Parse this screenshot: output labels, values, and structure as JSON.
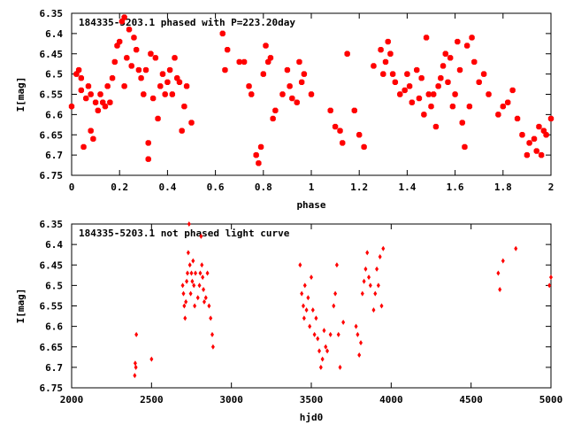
{
  "chart_data": [
    {
      "type": "scatter",
      "title": "184335-5203.1 phased with P=223.20day",
      "xlabel": "phase",
      "ylabel": "I[mag]",
      "xlim": [
        0,
        2
      ],
      "ylim": [
        6.35,
        6.75
      ],
      "y_inverted": true,
      "xticks": [
        0,
        0.2,
        0.4,
        0.6,
        0.8,
        1,
        1.2,
        1.4,
        1.6,
        1.8,
        2
      ],
      "xtick_labels": [
        "0",
        "0.2",
        "0.4",
        "0.6",
        "0.8",
        "1",
        "1.2",
        "1.4",
        "1.6",
        "1.8",
        "2"
      ],
      "yticks": [
        6.35,
        6.4,
        6.45,
        6.5,
        6.55,
        6.6,
        6.65,
        6.7,
        6.75
      ],
      "ytick_labels": [
        "6.35",
        "6.4",
        "6.45",
        "6.5",
        "6.55",
        "6.6",
        "6.65",
        "6.7",
        "6.75"
      ],
      "marker_color": "#ff0000",
      "marker": "filled-circle",
      "x": [
        0.0,
        0.02,
        0.03,
        0.04,
        0.04,
        0.05,
        0.06,
        0.07,
        0.08,
        0.08,
        0.09,
        0.1,
        0.11,
        0.12,
        0.13,
        0.14,
        0.15,
        0.16,
        0.17,
        0.18,
        0.19,
        0.2,
        0.21,
        0.22,
        0.22,
        0.23,
        0.24,
        0.25,
        0.26,
        0.27,
        0.28,
        0.29,
        0.3,
        0.31,
        0.32,
        0.32,
        0.33,
        0.34,
        0.35,
        0.36,
        0.37,
        0.38,
        0.39,
        0.4,
        0.41,
        0.42,
        0.43,
        0.44,
        0.45,
        0.46,
        0.47,
        0.48,
        0.5,
        0.63,
        0.64,
        0.65,
        0.7,
        0.72,
        0.74,
        0.75,
        0.77,
        0.78,
        0.79,
        0.8,
        0.81,
        0.82,
        0.83,
        0.84,
        0.85,
        0.88,
        0.9,
        0.91,
        0.92,
        0.94,
        0.95,
        0.96,
        0.97,
        1.0,
        1.08,
        1.1,
        1.12,
        1.13,
        1.15,
        1.18,
        1.2,
        1.22,
        1.26,
        1.29,
        1.3,
        1.31,
        1.32,
        1.33,
        1.34,
        1.35,
        1.37,
        1.39,
        1.4,
        1.41,
        1.42,
        1.44,
        1.45,
        1.46,
        1.47,
        1.48,
        1.49,
        1.5,
        1.51,
        1.52,
        1.53,
        1.54,
        1.55,
        1.56,
        1.57,
        1.58,
        1.59,
        1.6,
        1.61,
        1.62,
        1.63,
        1.64,
        1.65,
        1.66,
        1.67,
        1.68,
        1.7,
        1.72,
        1.74,
        1.78,
        1.8,
        1.82,
        1.84,
        1.86,
        1.88,
        1.9,
        1.91,
        1.93,
        1.94,
        1.95,
        1.96,
        1.97,
        1.98,
        2.0
      ],
      "y": [
        6.58,
        6.5,
        6.49,
        6.54,
        6.51,
        6.68,
        6.56,
        6.53,
        6.64,
        6.55,
        6.66,
        6.57,
        6.59,
        6.55,
        6.57,
        6.58,
        6.53,
        6.57,
        6.51,
        6.47,
        6.43,
        6.42,
        6.37,
        6.36,
        6.53,
        6.46,
        6.39,
        6.48,
        6.41,
        6.44,
        6.49,
        6.51,
        6.55,
        6.49,
        6.67,
        6.71,
        6.45,
        6.56,
        6.46,
        6.61,
        6.53,
        6.5,
        6.55,
        6.52,
        6.49,
        6.55,
        6.46,
        6.51,
        6.52,
        6.64,
        6.58,
        6.53,
        6.62,
        6.4,
        6.49,
        6.44,
        6.47,
        6.47,
        6.53,
        6.55,
        6.7,
        6.72,
        6.68,
        6.5,
        6.43,
        6.47,
        6.46,
        6.61,
        6.59,
        6.55,
        6.49,
        6.53,
        6.56,
        6.57,
        6.47,
        6.52,
        6.5,
        6.55,
        6.59,
        6.63,
        6.64,
        6.67,
        6.45,
        6.59,
        6.65,
        6.68,
        6.48,
        6.44,
        6.5,
        6.47,
        6.42,
        6.45,
        6.5,
        6.52,
        6.55,
        6.54,
        6.5,
        6.53,
        6.57,
        6.49,
        6.56,
        6.51,
        6.6,
        6.41,
        6.55,
        6.58,
        6.55,
        6.63,
        6.53,
        6.51,
        6.48,
        6.45,
        6.52,
        6.46,
        6.58,
        6.55,
        6.42,
        6.49,
        6.62,
        6.68,
        6.43,
        6.58,
        6.41,
        6.47,
        6.52,
        6.5,
        6.55,
        6.6,
        6.58,
        6.57,
        6.54,
        6.61,
        6.65,
        6.7,
        6.67,
        6.66,
        6.69,
        6.63,
        6.7,
        6.64,
        6.65,
        6.61
      ]
    },
    {
      "type": "scatter",
      "title": "184335-5203.1 not phased light curve",
      "xlabel": "hjd0",
      "ylabel": "I[mag]",
      "xlim": [
        2000,
        5000
      ],
      "ylim": [
        6.35,
        6.75
      ],
      "y_inverted": true,
      "xticks": [
        2000,
        2500,
        3000,
        3500,
        4000,
        4500,
        5000
      ],
      "xtick_labels": [
        "2000",
        "2500",
        "3000",
        "3500",
        "4000",
        "4500",
        "5000"
      ],
      "yticks": [
        6.35,
        6.4,
        6.45,
        6.5,
        6.55,
        6.6,
        6.65,
        6.7,
        6.75
      ],
      "ytick_labels": [
        "6.35",
        "6.4",
        "6.45",
        "6.5",
        "6.55",
        "6.6",
        "6.65",
        "6.7",
        "6.75"
      ],
      "marker_color": "#ff0000",
      "marker": "diamond",
      "x": [
        2395,
        2398,
        2402,
        2405,
        2500,
        2695,
        2700,
        2705,
        2710,
        2715,
        2720,
        2725,
        2730,
        2735,
        2740,
        2745,
        2750,
        2755,
        2760,
        2765,
        2770,
        2775,
        2790,
        2800,
        2805,
        2810,
        2815,
        2820,
        2825,
        2830,
        2840,
        2850,
        2860,
        2870,
        2880,
        2885,
        3430,
        3440,
        3450,
        3455,
        3460,
        3470,
        3480,
        3490,
        3500,
        3510,
        3520,
        3530,
        3540,
        3550,
        3560,
        3570,
        3580,
        3590,
        3600,
        3620,
        3640,
        3650,
        3660,
        3670,
        3680,
        3700,
        3780,
        3790,
        3800,
        3810,
        3820,
        3830,
        3840,
        3850,
        3860,
        3870,
        3890,
        3900,
        3910,
        3920,
        3930,
        3940,
        3950,
        4670,
        4680,
        4700,
        4780,
        4990,
        5000
      ],
      "y": [
        6.72,
        6.69,
        6.7,
        6.62,
        6.68,
        6.5,
        6.52,
        6.55,
        6.58,
        6.54,
        6.49,
        6.47,
        6.42,
        6.35,
        6.45,
        6.52,
        6.47,
        6.49,
        6.44,
        6.5,
        6.55,
        6.47,
        6.53,
        6.5,
        6.47,
        6.38,
        6.45,
        6.48,
        6.51,
        6.54,
        6.53,
        6.47,
        6.55,
        6.58,
        6.62,
        6.65,
        6.45,
        6.52,
        6.55,
        6.58,
        6.5,
        6.56,
        6.53,
        6.6,
        6.48,
        6.56,
        6.62,
        6.58,
        6.63,
        6.66,
        6.7,
        6.68,
        6.61,
        6.65,
        6.66,
        6.62,
        6.55,
        6.52,
        6.45,
        6.62,
        6.7,
        6.59,
        6.6,
        6.62,
        6.67,
        6.64,
        6.52,
        6.49,
        6.46,
        6.42,
        6.48,
        6.5,
        6.56,
        6.52,
        6.46,
        6.5,
        6.43,
        6.55,
        6.41,
        6.47,
        6.51,
        6.44,
        6.41,
        6.5,
        6.48
      ]
    }
  ]
}
